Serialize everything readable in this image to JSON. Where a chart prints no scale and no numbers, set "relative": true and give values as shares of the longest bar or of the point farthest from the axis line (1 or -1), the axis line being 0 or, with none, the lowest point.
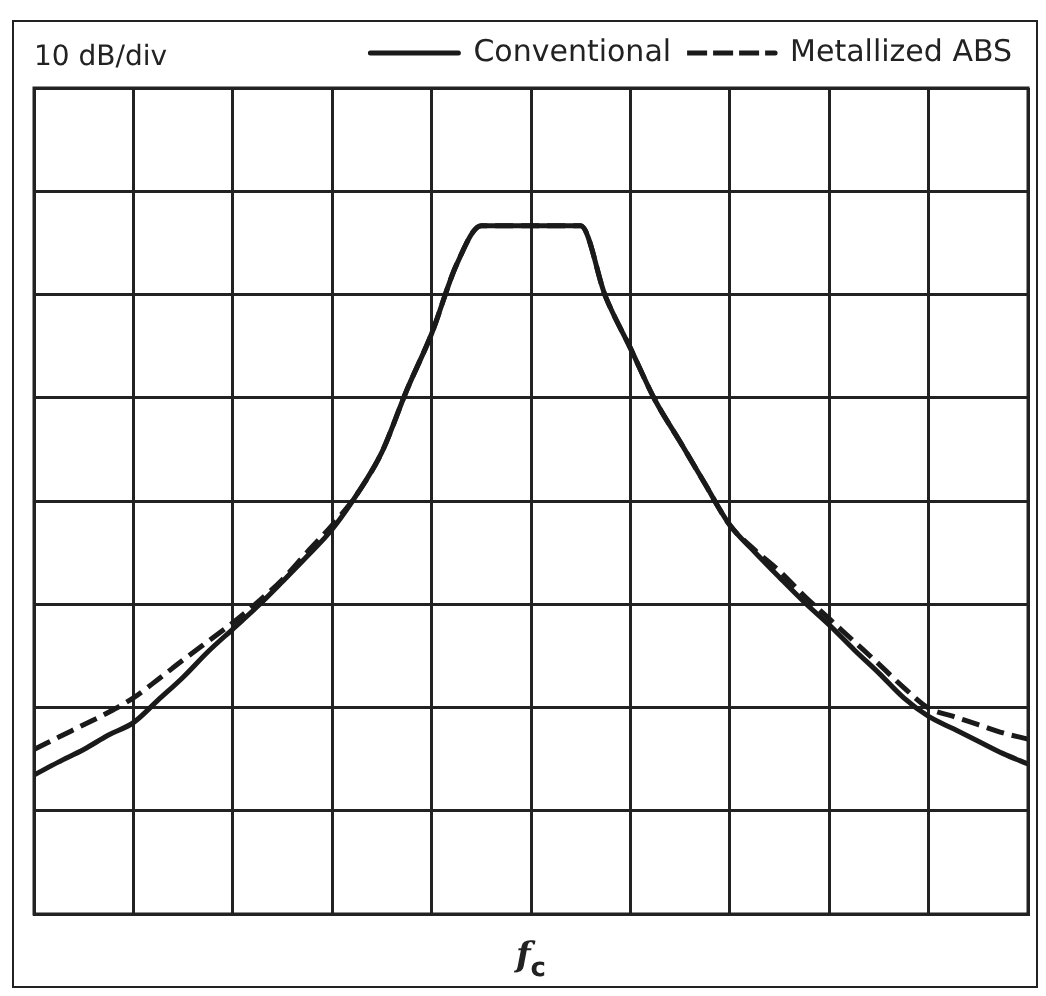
{
  "chart_data": {
    "type": "line",
    "relative": true,
    "annotations": [
      "10 dB/div"
    ],
    "xlabel": "f$_{c}$",
    "grid": true,
    "legend": "top right",
    "categories": [
      null,
      null,
      null,
      null,
      null,
      null,
      null,
      null,
      null,
      null,
      null,
      null,
      null,
      null,
      null,
      null,
      null,
      null,
      null,
      null,
      null,
      null,
      null,
      null,
      null,
      null,
      null,
      null,
      null,
      null,
      null,
      null,
      null,
      null,
      null,
      null,
      null,
      null,
      null,
      null,
      null
    ],
    "series": [
      {
        "name": "Conventional",
        "color": "#1a1a1a",
        "line_style": "solid",
        "values": [
          0.202,
          0.221,
          0.239,
          0.26,
          0.278,
          0.311,
          0.344,
          0.381,
          0.414,
          0.447,
          0.483,
          0.52,
          0.559,
          0.61,
          0.671,
          0.761,
          0.843,
          0.943,
          1,
          1,
          1,
          1,
          1,
          0.897,
          0.822,
          0.746,
          0.686,
          0.625,
          0.565,
          0.526,
          0.489,
          0.453,
          0.42,
          0.384,
          0.35,
          0.314,
          0.287,
          0.269,
          0.251,
          0.233,
          0.218
        ]
      },
      {
        "name": "Metallized ABS",
        "color": "#1a1a1a",
        "line_style": "dashed",
        "values": [
          0.239,
          0.257,
          0.275,
          0.293,
          0.314,
          0.341,
          0.369,
          0.396,
          0.423,
          0.453,
          0.486,
          0.526,
          0.565,
          0.61,
          0.671,
          0.761,
          0.843,
          0.943,
          1,
          1,
          1,
          1,
          1,
          0.897,
          0.822,
          0.746,
          0.686,
          0.625,
          0.565,
          0.529,
          0.498,
          0.462,
          0.429,
          0.396,
          0.363,
          0.329,
          0.299,
          0.287,
          0.275,
          0.263,
          0.254
        ]
      }
    ]
  }
}
